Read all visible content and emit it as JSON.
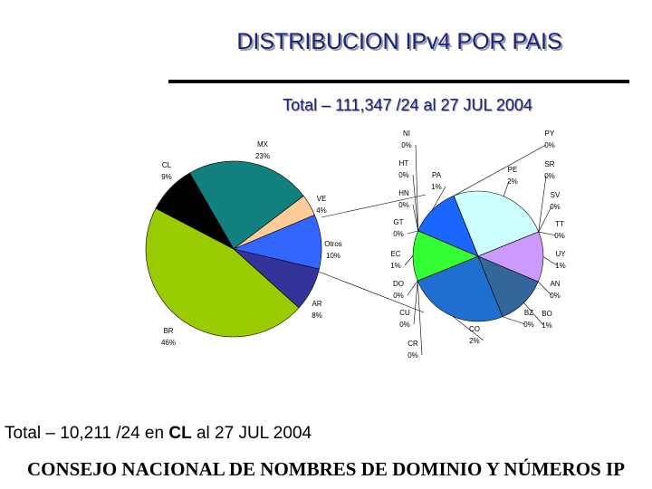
{
  "title": "DISTRIBUCION IPv4 POR PAIS",
  "subtitle": "Total – 111,347 /24 al 27 JUL 2004",
  "note": {
    "before": "Total – 10,211 /24 en ",
    "bold": "CL",
    "after": " al 27 JUL 2004"
  },
  "banner": "CONSEJO NACIONAL DE NOMBRES DE DOMINIO Y NÚMEROS IP",
  "chart_data": [
    {
      "type": "pie",
      "categories": [
        "MX",
        "VE",
        "Otros",
        "AR",
        "BR",
        "CL"
      ],
      "values": [
        23,
        4,
        10,
        8,
        46,
        9
      ],
      "value_labels": [
        "23%",
        "4%",
        "10%",
        "8%",
        "46%",
        "9%"
      ],
      "colors": [
        "#138080",
        "#ffcc99",
        "#3366ff",
        "#333399",
        "#99cc00",
        "#000000"
      ]
    },
    {
      "type": "pie",
      "categories": [
        "PE",
        "SR",
        "SV",
        "TT",
        "UY",
        "AN",
        "BO",
        "BZ",
        "CO",
        "CR",
        "CU",
        "DO",
        "EC",
        "GT",
        "HN",
        "HT",
        "NI",
        "PA",
        "PY"
      ],
      "values": [
        2,
        0,
        0,
        0,
        1,
        0,
        1,
        0,
        2,
        0,
        0,
        0,
        1,
        0,
        0,
        0,
        0,
        1,
        0
      ],
      "value_labels": [
        "2%",
        "0%",
        "0%",
        "0%",
        "1%",
        "0%",
        "1%",
        "0%",
        "2%",
        "0%",
        "0%",
        "0%",
        "1%",
        "0%",
        "0%",
        "0%",
        "0%",
        "1%",
        "0%"
      ],
      "colors": [
        "#ccffff",
        "#99ccff",
        "#ff99cc",
        "#99ccff",
        "#cc99ff",
        "#009999",
        "#336699",
        "#666699",
        "#1f6fd0",
        "#ccccff",
        "#ffff66",
        "#ff0000",
        "#33ff33",
        "#00ffff",
        "#ff66cc",
        "#9999ff",
        "#6633cc",
        "#1a66ff",
        "#339966"
      ]
    }
  ]
}
